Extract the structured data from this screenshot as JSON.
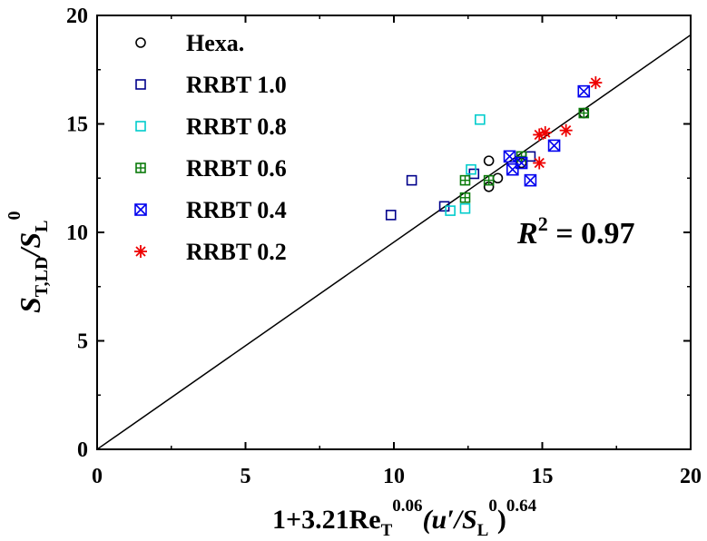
{
  "chart_data": {
    "type": "scatter",
    "title": "",
    "xlim": [
      0,
      20
    ],
    "ylim": [
      0,
      20
    ],
    "xticks": [
      "0",
      "5",
      "10",
      "15",
      "20"
    ],
    "yticks": [
      "0",
      "5",
      "10",
      "15",
      "20"
    ],
    "xlabel": {
      "prefix": "1+3.21Re",
      "sub1": "T",
      "sup1": "0.06",
      "mid": "(u′/S",
      "sub2": "L",
      "sup2": "0",
      "close": ")",
      "sup3": "0.64"
    },
    "ylabel": {
      "main": "S",
      "sub1": "T,LD",
      "mid": "/S",
      "sub2": "L",
      "sup2": "0"
    },
    "annotation": {
      "r": "R",
      "sup": "2",
      "rest": " = 0.97"
    },
    "fit_line": {
      "x": [
        0,
        20
      ],
      "y": [
        0,
        19.1
      ]
    },
    "grid": false,
    "legend_position": "top-left",
    "series": [
      {
        "name": "Hexa.",
        "marker": "circle",
        "color": "#000000",
        "points": [
          [
            13.2,
            13.3
          ],
          [
            13.5,
            12.5
          ],
          [
            13.2,
            12.1
          ],
          [
            14.3,
            13.2
          ],
          [
            16.4,
            15.5
          ]
        ]
      },
      {
        "name": "RRBT 1.0",
        "marker": "square",
        "color": "#00008B",
        "points": [
          [
            9.9,
            10.8
          ],
          [
            10.6,
            12.4
          ],
          [
            11.7,
            11.2
          ],
          [
            12.7,
            12.7
          ],
          [
            14.6,
            13.5
          ]
        ]
      },
      {
        "name": "RRBT 0.8",
        "marker": "square",
        "color": "#00CCCC",
        "points": [
          [
            11.9,
            11.0
          ],
          [
            12.4,
            11.1
          ],
          [
            12.6,
            12.9
          ],
          [
            12.9,
            15.2
          ]
        ]
      },
      {
        "name": "RRBT 0.6",
        "marker": "square-plus",
        "color": "#0A7A0A",
        "points": [
          [
            12.4,
            11.6
          ],
          [
            12.4,
            12.4
          ],
          [
            13.2,
            12.4
          ],
          [
            14.3,
            13.5
          ],
          [
            16.4,
            15.5
          ]
        ]
      },
      {
        "name": "RRBT 0.4",
        "marker": "x-box",
        "color": "#0000EE",
        "points": [
          [
            13.9,
            13.5
          ],
          [
            14.0,
            12.9
          ],
          [
            14.3,
            13.2
          ],
          [
            14.6,
            12.4
          ],
          [
            15.4,
            14.0
          ],
          [
            16.4,
            16.5
          ]
        ]
      },
      {
        "name": "RRBT 0.2",
        "marker": "asterisk",
        "color": "#EE0000",
        "points": [
          [
            14.9,
            14.5
          ],
          [
            15.1,
            14.6
          ],
          [
            14.9,
            13.2
          ],
          [
            15.8,
            14.7
          ],
          [
            16.8,
            16.9
          ]
        ]
      }
    ]
  }
}
